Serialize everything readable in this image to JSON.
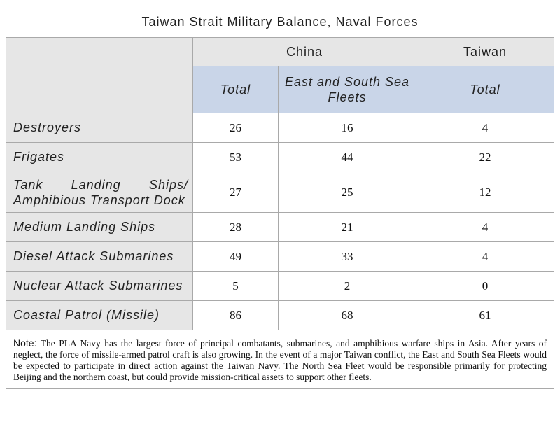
{
  "title": "Taiwan Strait Military Balance, Naval Forces",
  "groups": {
    "china": "China",
    "taiwan": "Taiwan"
  },
  "subheaders": {
    "china_total": "Total",
    "east_south": "East and South Sea Fleets",
    "taiwan_total": "Total"
  },
  "rows": [
    {
      "label": "Destroyers",
      "china_total": "26",
      "east_south": "16",
      "taiwan_total": "4"
    },
    {
      "label": "Frigates",
      "china_total": "53",
      "east_south": "44",
      "taiwan_total": "22"
    },
    {
      "label_line1": "Tank Landing Ships/",
      "label_line2": "Amphibious Transport Dock",
      "china_total": "27",
      "east_south": "25",
      "taiwan_total": "12"
    },
    {
      "label": "Medium Landing Ships",
      "china_total": "28",
      "east_south": "21",
      "taiwan_total": "4"
    },
    {
      "label": "Diesel Attack Submarines",
      "china_total": "49",
      "east_south": "33",
      "taiwan_total": "4"
    },
    {
      "label": "Nuclear Attack Submarines",
      "china_total": "5",
      "east_south": "2",
      "taiwan_total": "0"
    },
    {
      "label": "Coastal Patrol (Missile)",
      "china_total": "86",
      "east_south": "68",
      "taiwan_total": "61"
    }
  ],
  "note": {
    "label": "Note:",
    "text": "The PLA Navy has the largest force of principal combatants, submarines, and amphibious warfare ships in Asia.  After years of neglect, the force of missile-armed patrol craft is also growing.  In the event of a major Taiwan conflict, the East and South Sea Fleets would be expected to participate in direct action against the Taiwan Navy.  The North Sea Fleet would be responsible primarily for protecting Beijing and the northern coast, but could provide mission-critical assets to support other fleets."
  }
}
